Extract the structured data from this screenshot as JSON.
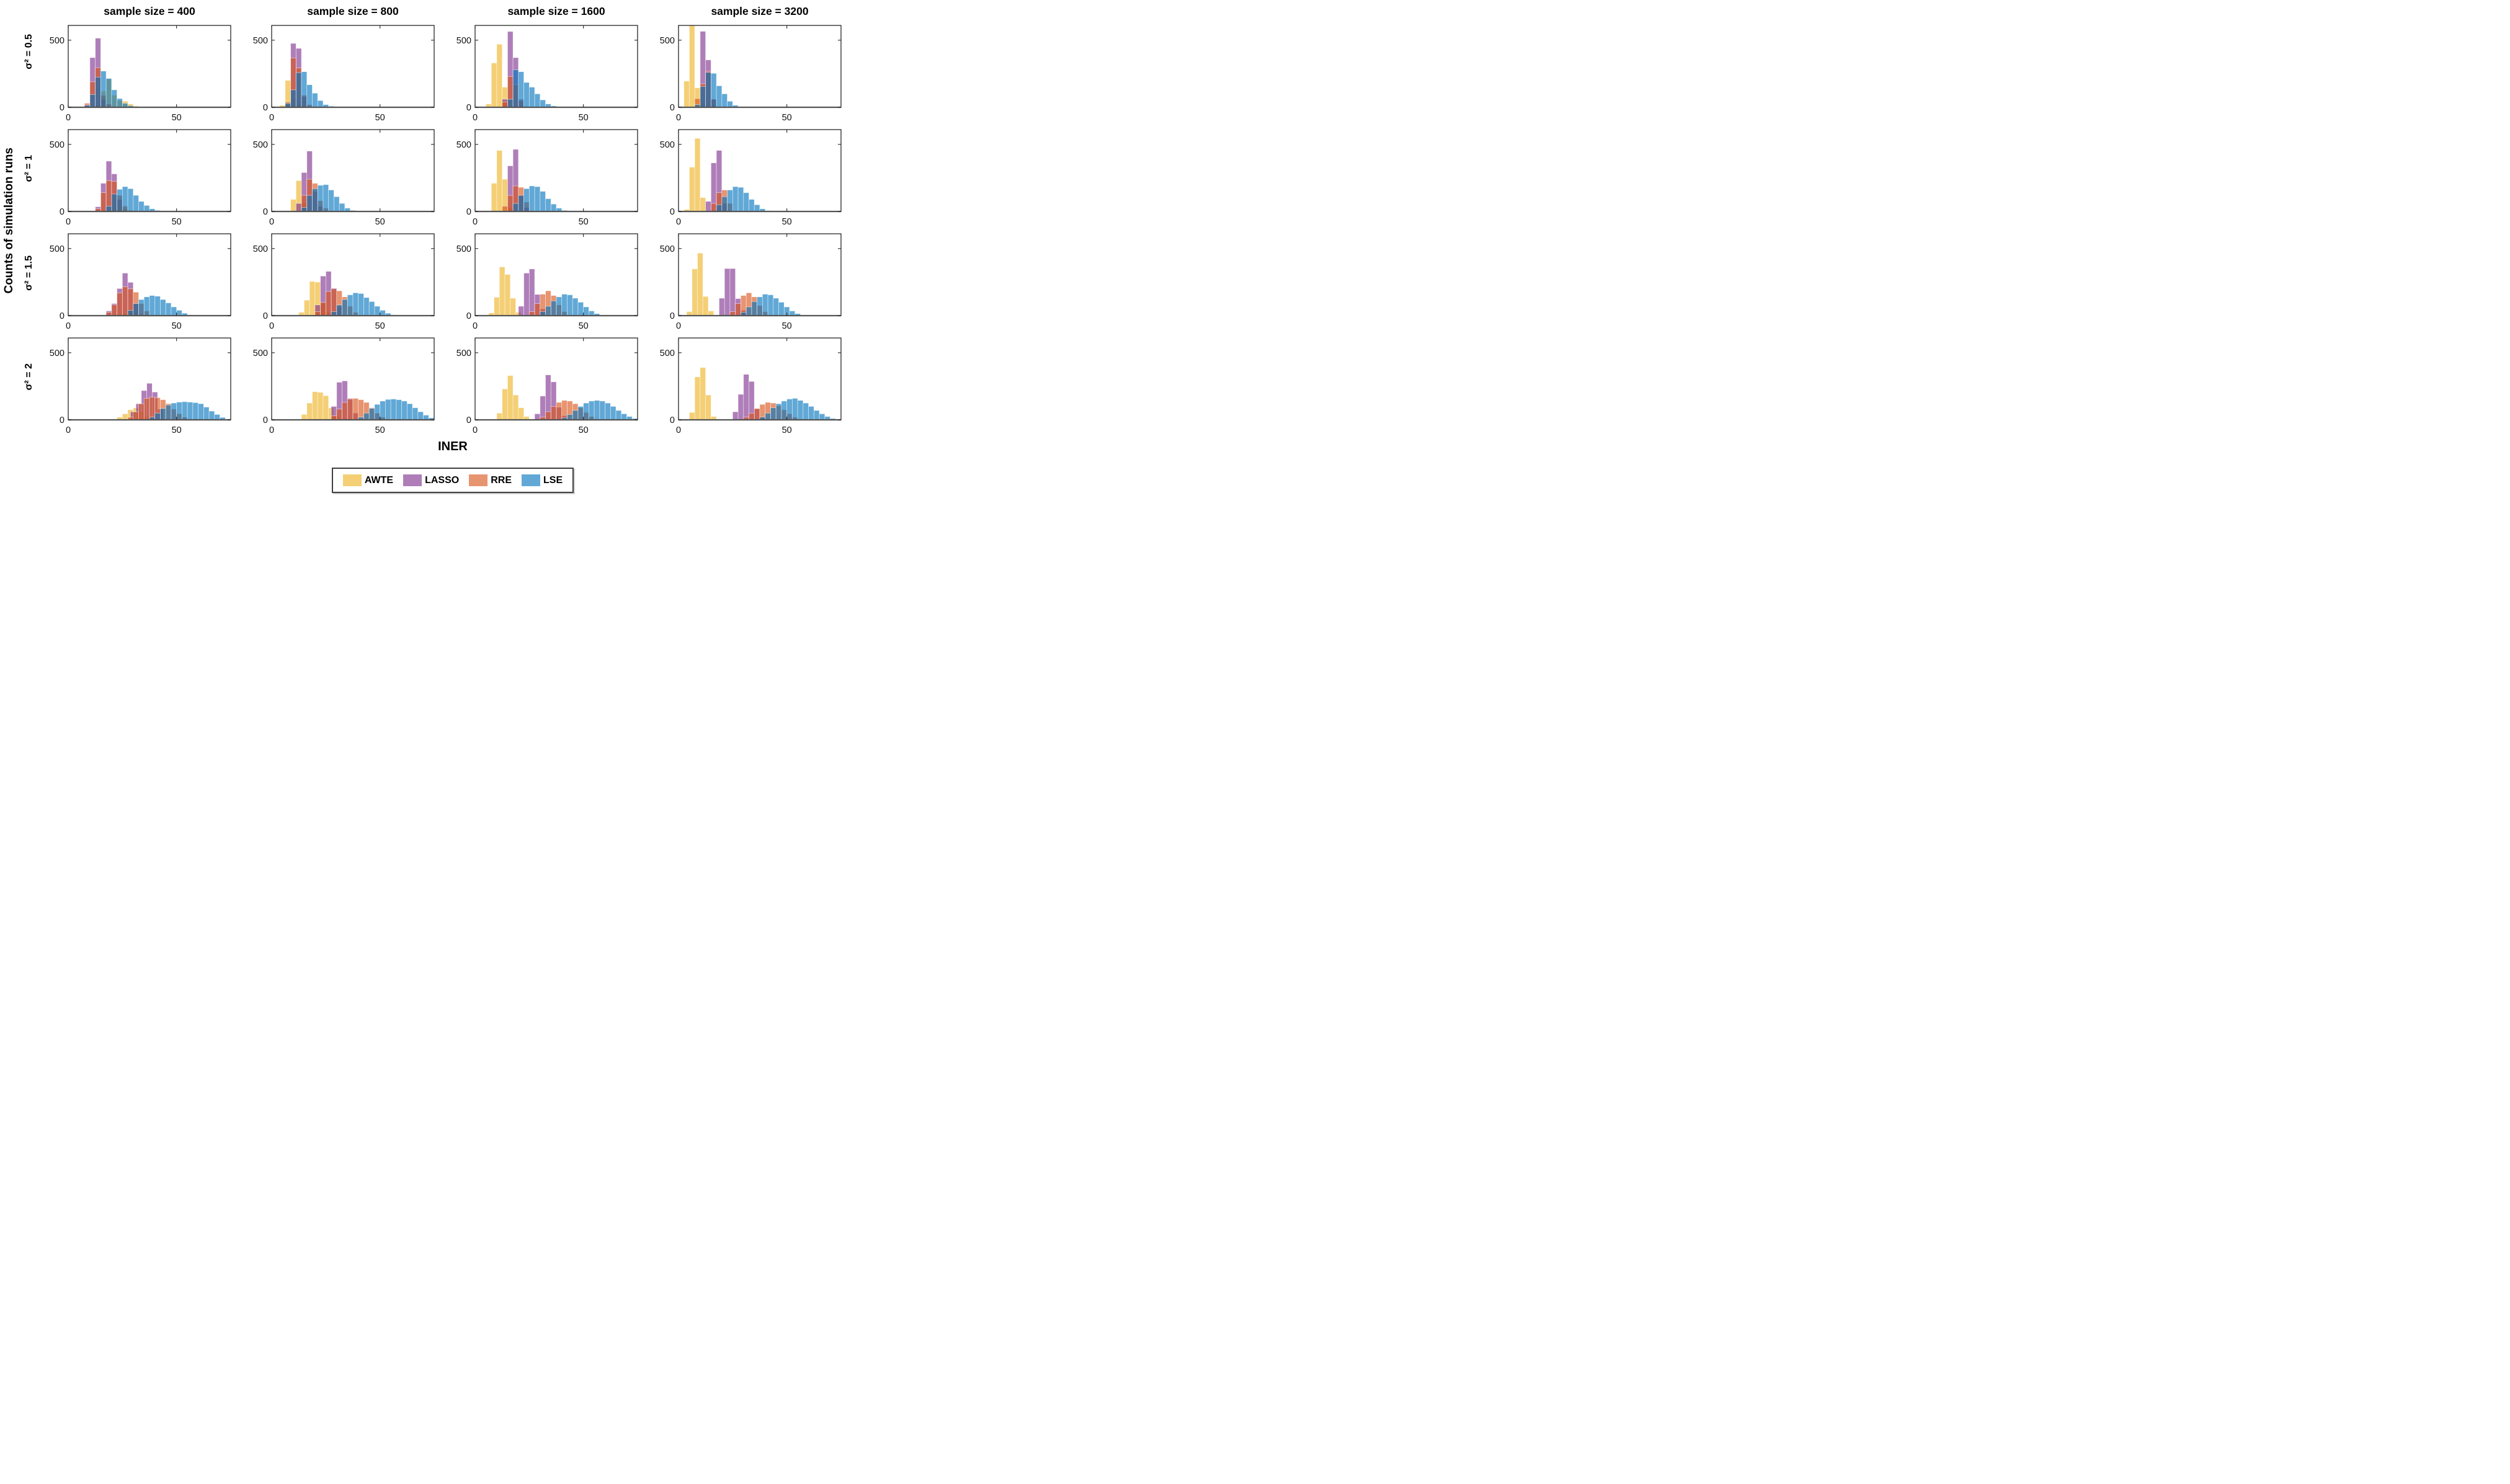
{
  "figure": {
    "ylabel": "Counts of simulation runs",
    "xlabel": "INER",
    "col_titles": [
      "sample size = 400",
      "sample size = 800",
      "sample size = 1600",
      "sample size = 3200"
    ],
    "row_labels": [
      "σ² = 0.5",
      "σ² = 1",
      "σ² = 1.5",
      "σ² = 2"
    ]
  },
  "chart_data": {
    "type": "bar",
    "subtype": "overlaid-histogram-small-multiples",
    "bin_width": 2.5,
    "xlim": [
      0,
      75
    ],
    "ylim": [
      0,
      610
    ],
    "x_ticks": [
      0,
      50
    ],
    "y_ticks": [
      0,
      500
    ],
    "xlabel": "INER",
    "ylabel": "Counts of simulation runs",
    "grid": "off",
    "legend_position": "below-figure",
    "fill_alpha": 0.62,
    "legend": [
      {
        "name": "AWTE",
        "color": "#EDB120"
      },
      {
        "name": "LASSO",
        "color": "#7E2F8E"
      },
      {
        "name": "RRE",
        "color": "#D95319"
      },
      {
        "name": "LSE",
        "color": "#0072BD"
      }
    ],
    "panels": [
      {
        "sigma2": 0.5,
        "sample_size": 400,
        "series": {
          "AWTE": {
            "start": 12.5,
            "counts": [
              20,
              120,
              210,
              90,
              50,
              45,
              25,
              10
            ]
          },
          "LASSO": {
            "start": 7.5,
            "counts": [
              15,
              370,
              515,
              60
            ]
          },
          "RRE": {
            "start": 7.5,
            "counts": [
              30,
              190,
              295,
              90,
              25
            ]
          },
          "LSE": {
            "start": 7.5,
            "counts": [
              15,
              95,
              225,
              270,
              215,
              130,
              65,
              30,
              12,
              5
            ]
          }
        }
      },
      {
        "sigma2": 0.5,
        "sample_size": 800,
        "series": {
          "AWTE": {
            "start": 3.75,
            "counts": [
              15,
              200,
              60,
              25
            ]
          },
          "LASSO": {
            "start": 6.25,
            "counts": [
              20,
              476,
              439,
              80
            ]
          },
          "RRE": {
            "start": 6.25,
            "counts": [
              40,
              368,
              293,
              90,
              20
            ]
          },
          "LSE": {
            "start": 6.25,
            "counts": [
              30,
              130,
              258,
              265,
              168,
              105,
              50,
              20,
              8
            ]
          }
        }
      },
      {
        "sigma2": 0.5,
        "sample_size": 1600,
        "series": {
          "AWTE": {
            "start": 5,
            "counts": [
              25,
              330,
              470,
              150
            ]
          },
          "LASSO": {
            "start": 12.5,
            "counts": [
              60,
              565,
              370,
              60
            ]
          },
          "RRE": {
            "start": 12.5,
            "counts": [
              40,
              230,
              170,
              50
            ]
          },
          "LSE": {
            "start": 15,
            "counts": [
              60,
              280,
              265,
              185,
              150,
              100,
              55,
              25,
              10
            ]
          }
        }
      },
      {
        "sigma2": 0.5,
        "sample_size": 3200,
        "series": {
          "AWTE": {
            "start": 2.5,
            "counts": [
              195,
              620,
              145,
              30
            ]
          },
          "LASSO": {
            "start": 10,
            "counts": [
              566,
              353,
              60
            ]
          },
          "RRE": {
            "start": 7.5,
            "counts": [
              65,
              175,
              268,
              60
            ]
          },
          "LSE": {
            "start": 7.5,
            "counts": [
              20,
              155,
              260,
              253,
              160,
              100,
              45,
              15
            ]
          }
        }
      },
      {
        "sigma2": 1,
        "sample_size": 400,
        "series": {
          "AWTE": {
            "start": 20,
            "counts": [
              20,
              35,
              20,
              10
            ]
          },
          "LASSO": {
            "start": 12.5,
            "counts": [
              35,
              210,
              375,
              280,
              90
            ]
          },
          "RRE": {
            "start": 12.5,
            "counts": [
              20,
              140,
              230,
              225,
              120,
              40
            ]
          },
          "LSE": {
            "start": 17.5,
            "counts": [
              40,
              130,
              165,
              185,
              170,
              120,
              75,
              45,
              20,
              8
            ]
          }
        }
      },
      {
        "sigma2": 1,
        "sample_size": 800,
        "series": {
          "AWTE": {
            "start": 8.75,
            "counts": [
              90,
              230,
              60
            ]
          },
          "LASSO": {
            "start": 11.25,
            "counts": [
              60,
              290,
              450,
              150,
              40
            ]
          },
          "RRE": {
            "start": 13.75,
            "counts": [
              120,
              240,
              210,
              80,
              25
            ]
          },
          "LSE": {
            "start": 13.75,
            "counts": [
              30,
              120,
              170,
              195,
              200,
              160,
              110,
              60,
              25,
              8
            ]
          }
        }
      },
      {
        "sigma2": 1,
        "sample_size": 1600,
        "series": {
          "AWTE": {
            "start": 7.5,
            "counts": [
              210,
              455,
              240,
              30
            ]
          },
          "LASSO": {
            "start": 15,
            "counts": [
              340,
              463,
              120,
              30
            ]
          },
          "RRE": {
            "start": 12.5,
            "counts": [
              40,
              120,
              190,
              180,
              70
            ]
          },
          "LSE": {
            "start": 17.5,
            "counts": [
              60,
              120,
              170,
              190,
              185,
              150,
              95,
              55,
              25,
              8
            ]
          }
        }
      },
      {
        "sigma2": 1,
        "sample_size": 3200,
        "series": {
          "AWTE": {
            "start": 2.5,
            "counts": [
              15,
              330,
              545,
              103
            ]
          },
          "LASSO": {
            "start": 12.5,
            "counts": [
              75,
              362,
              455,
              60
            ]
          },
          "RRE": {
            "start": 15,
            "counts": [
              60,
              140,
              160,
              60
            ]
          },
          "LSE": {
            "start": 17.5,
            "counts": [
              50,
              110,
              160,
              185,
              180,
              140,
              90,
              50,
              20,
              6
            ]
          }
        }
      },
      {
        "sigma2": 1.5,
        "sample_size": 400,
        "series": {
          "AWTE": {
            "start": 25,
            "counts": [
              15,
              35,
              30,
              15
            ]
          },
          "LASSO": {
            "start": 17.5,
            "counts": [
              35,
              90,
              202,
              317,
              248,
              90
            ]
          },
          "RRE": {
            "start": 17.5,
            "counts": [
              25,
              80,
              170,
              215,
              200,
              175,
              90,
              35
            ]
          },
          "LSE": {
            "start": 27.5,
            "counts": [
              40,
              90,
              120,
              140,
              150,
              145,
              120,
              95,
              65,
              40,
              18,
              6
            ]
          }
        }
      },
      {
        "sigma2": 1.5,
        "sample_size": 800,
        "series": {
          "AWTE": {
            "start": 12.5,
            "counts": [
              25,
              115,
              255,
              250,
              90,
              25
            ]
          },
          "LASSO": {
            "start": 20,
            "counts": [
              80,
              295,
              330,
              205,
              70
            ]
          },
          "RRE": {
            "start": 20,
            "counts": [
              30,
              100,
              180,
              200,
              185,
              140,
              70,
              25
            ]
          },
          "LSE": {
            "start": 27.5,
            "counts": [
              30,
              80,
              120,
              155,
              170,
              165,
              135,
              105,
              70,
              40,
              18,
              6
            ]
          }
        }
      },
      {
        "sigma2": 1.5,
        "sample_size": 1600,
        "series": {
          "AWTE": {
            "start": 6.25,
            "counts": [
              20,
              137,
              363,
              307,
              130,
              25
            ]
          },
          "LASSO": {
            "start": 20,
            "counts": [
              70,
              317,
              348,
              158,
              50
            ]
          },
          "RRE": {
            "start": 25,
            "counts": [
              30,
              90,
              160,
              185,
              150,
              80,
              30
            ]
          },
          "LSE": {
            "start": 30,
            "counts": [
              30,
              70,
              110,
              140,
              160,
              155,
              130,
              100,
              65,
              35,
              15,
              5
            ]
          }
        }
      },
      {
        "sigma2": 1.5,
        "sample_size": 3200,
        "series": {
          "AWTE": {
            "start": 3.75,
            "counts": [
              30,
              348,
              466,
              143,
              35
            ]
          },
          "LASSO": {
            "start": 18.75,
            "counts": [
              130,
              351,
              351,
              127,
              40
            ]
          },
          "RRE": {
            "start": 23.75,
            "counts": [
              30,
              90,
              150,
              170,
              140,
              75,
              30
            ]
          },
          "LSE": {
            "start": 28.75,
            "counts": [
              25,
              65,
              105,
              140,
              160,
              155,
              130,
              100,
              65,
              35,
              15,
              5
            ]
          }
        }
      },
      {
        "sigma2": 2,
        "sample_size": 400,
        "series": {
          "AWTE": {
            "start": 22.5,
            "counts": [
              20,
              45,
              75,
              90,
              60,
              25
            ]
          },
          "LASSO": {
            "start": 28.75,
            "counts": [
              60,
              120,
              218,
              272,
              207,
              80
            ]
          },
          "RRE": {
            "start": 27.5,
            "counts": [
              20,
              60,
              120,
              160,
              170,
              165,
              150,
              120,
              80,
              45,
              20
            ]
          },
          "LSE": {
            "start": 37.5,
            "counts": [
              20,
              50,
              85,
              110,
              125,
              132,
              135,
              132,
              128,
              120,
              95,
              65,
              40,
              18,
              6
            ]
          }
        }
      },
      {
        "sigma2": 2,
        "sample_size": 800,
        "series": {
          "AWTE": {
            "start": 13.75,
            "counts": [
              40,
              125,
              210,
              205,
              180,
              90,
              30
            ]
          },
          "LASSO": {
            "start": 27.5,
            "counts": [
              100,
              280,
              290,
              160,
              50
            ]
          },
          "RRE": {
            "start": 27.5,
            "counts": [
              30,
              80,
              130,
              155,
              160,
              150,
              130,
              90,
              50,
              20
            ]
          },
          "LSE": {
            "start": 40,
            "counts": [
              20,
              50,
              85,
              115,
              140,
              152,
              155,
              150,
              140,
              120,
              90,
              60,
              35,
              15
            ]
          }
        }
      },
      {
        "sigma2": 2,
        "sample_size": 1600,
        "series": {
          "AWTE": {
            "start": 10,
            "counts": [
              50,
              230,
              330,
              185,
              90,
              25
            ]
          },
          "LASSO": {
            "start": 27.5,
            "counts": [
              45,
              177,
              335,
              283,
              93,
              30
            ]
          },
          "RRE": {
            "start": 30,
            "counts": [
              20,
              60,
              100,
              130,
              145,
              140,
              120,
              90,
              55,
              25
            ]
          },
          "LSE": {
            "start": 40,
            "counts": [
              15,
              40,
              70,
              100,
              125,
              140,
              145,
              140,
              125,
              100,
              70,
              45,
              25,
              10
            ]
          }
        }
      },
      {
        "sigma2": 2,
        "sample_size": 3200,
        "series": {
          "AWTE": {
            "start": 5,
            "counts": [
              55,
              320,
              390,
              185,
              25
            ]
          },
          "LASSO": {
            "start": 25,
            "counts": [
              60,
              190,
              339,
              286,
              81,
              20
            ]
          },
          "RRE": {
            "start": 30,
            "counts": [
              20,
              50,
              85,
              115,
              130,
              125,
              105,
              75,
              45,
              20
            ]
          },
          "LSE": {
            "start": 37.5,
            "counts": [
              20,
              50,
              90,
              120,
              140,
              155,
              160,
              145,
              125,
              100,
              70,
              45,
              25,
              10
            ]
          }
        }
      }
    ]
  }
}
